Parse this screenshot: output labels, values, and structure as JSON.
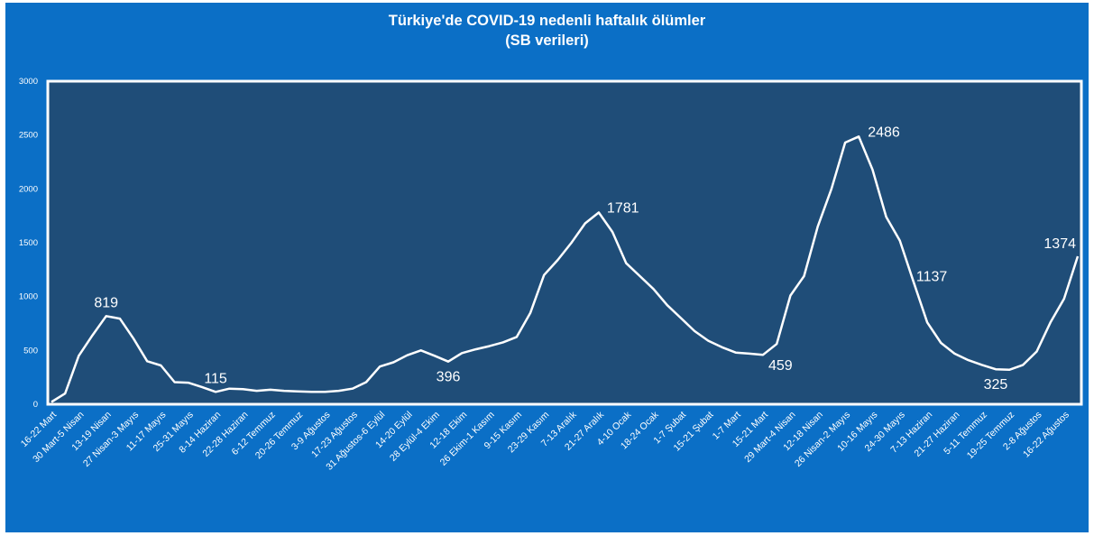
{
  "colors": {
    "background": "#0b6fc6",
    "plot_area": "#1f4d78",
    "line": "#ffffff",
    "text": "#ffffff"
  },
  "chart_data": {
    "type": "line",
    "title": "Türkiye'de COVID-19 nedenli haftalık ölümler",
    "subtitle": "(SB verileri)",
    "xlabel": "",
    "ylabel": "",
    "ylim": [
      0,
      3000
    ],
    "yticks": [
      0,
      500,
      1000,
      1500,
      2000,
      2500,
      3000
    ],
    "grid": false,
    "legend": "none",
    "x_tick_labels": [
      "16-22 Mart",
      "30 Mart-5 Nisan",
      "13-19 Nisan",
      "27 Nisan-3 Mayıs",
      "11-17 Mayıs",
      "25-31 Mayıs",
      "8-14 Haziran",
      "22-28 Haziran",
      "6-12 Temmuz",
      "20-26 Temmuz",
      "3-9 Ağustos",
      "17-23 Ağustos",
      "31 Ağustos-6 Eylül",
      "14-20 Eylül",
      "28 Eylül-4 Ekim",
      "12-18 Ekim",
      "26 Ekim-1 Kasım",
      "9-15 Kasım",
      "23-29 Kasım",
      "7-13 Aralık",
      "21-27 Aralık",
      "4-10 Ocak",
      "18-24 Ocak",
      "1-7 Şubat",
      "15-21 Şubat",
      "1-7 Mart",
      "15-21 Mart",
      "29 Mart-4 Nisan",
      "12-18 Nisan",
      "26 Nisan-2 Mayıs",
      "10-16 Mayıs",
      "24-30 Mayıs",
      "7-13 Haziran",
      "21-27 Haziran",
      "5-11 Temmuz",
      "19-25 Temmuz",
      "2-8 Ağustos",
      "16-22 Ağustos"
    ],
    "series": [
      {
        "values": [
          21,
          100,
          450,
          640,
          819,
          795,
          610,
          400,
          360,
          205,
          200,
          160,
          115,
          145,
          140,
          125,
          135,
          125,
          120,
          115,
          115,
          125,
          145,
          205,
          350,
          390,
          455,
          500,
          450,
          396,
          475,
          510,
          540,
          575,
          625,
          850,
          1200,
          1340,
          1500,
          1680,
          1781,
          1600,
          1310,
          1190,
          1070,
          920,
          800,
          680,
          590,
          530,
          480,
          470,
          459,
          560,
          1010,
          1190,
          1650,
          2000,
          2430,
          2486,
          2180,
          1740,
          1520,
          1137,
          760,
          570,
          470,
          410,
          365,
          325,
          320,
          365,
          490,
          760,
          980,
          1374
        ]
      }
    ],
    "annotations": [
      {
        "index": 4,
        "label": "819"
      },
      {
        "index": 12,
        "label": "115"
      },
      {
        "index": 29,
        "label": "396"
      },
      {
        "index": 40,
        "label": "1781"
      },
      {
        "index": 52,
        "label": "459"
      },
      {
        "index": 59,
        "label": "2486"
      },
      {
        "index": 63,
        "label": "1137"
      },
      {
        "index": 69,
        "label": "325"
      },
      {
        "index": 75,
        "label": "1374"
      }
    ]
  }
}
